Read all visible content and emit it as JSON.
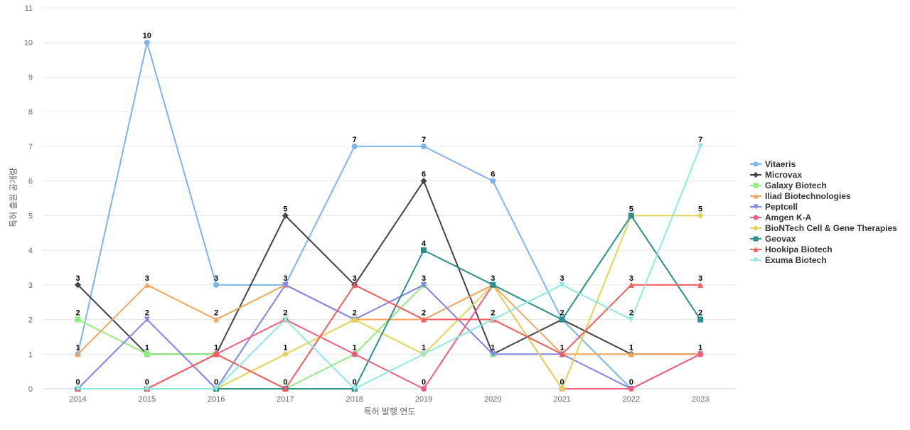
{
  "chart_data": {
    "type": "line",
    "title": "",
    "xlabel": "특허 발행 연도",
    "ylabel": "특허 출원 공개량",
    "x": [
      "2014",
      "2015",
      "2016",
      "2017",
      "2018",
      "2019",
      "2020",
      "2021",
      "2022",
      "2023"
    ],
    "ylim": [
      0,
      11
    ],
    "yticks": [
      0,
      1,
      2,
      3,
      4,
      5,
      6,
      7,
      8,
      9,
      10,
      11
    ],
    "grid": true,
    "legend_position": "right",
    "series": [
      {
        "name": "Vitaeris",
        "color": "#7cb5ec",
        "marker": "circle",
        "values": [
          1,
          10,
          3,
          3,
          7,
          7,
          6,
          2,
          0,
          null
        ]
      },
      {
        "name": "Microvax",
        "color": "#434348",
        "marker": "diamond",
        "values": [
          3,
          1,
          1,
          5,
          3,
          6,
          1,
          2,
          1,
          1
        ]
      },
      {
        "name": "Galaxy Biotech",
        "color": "#90ed7d",
        "marker": "square",
        "values": [
          2,
          1,
          1,
          0,
          1,
          3,
          1,
          null,
          null,
          null
        ]
      },
      {
        "name": "Iliad Biotechnologies",
        "color": "#f7a35c",
        "marker": "triangle",
        "values": [
          1,
          3,
          2,
          3,
          2,
          2,
          3,
          1,
          1,
          1
        ]
      },
      {
        "name": "Peptcell",
        "color": "#8085e9",
        "marker": "triangle-down",
        "values": [
          0,
          2,
          0,
          3,
          2,
          3,
          1,
          1,
          0,
          1
        ]
      },
      {
        "name": "Amgen K-A",
        "color": "#f15c80",
        "marker": "circle",
        "values": [
          0,
          0,
          1,
          2,
          1,
          0,
          3,
          0,
          0,
          1
        ]
      },
      {
        "name": "BioNTech Cell & Gene Therapies",
        "color": "#e4d354",
        "marker": "diamond",
        "values": [
          0,
          0,
          0,
          1,
          2,
          1,
          3,
          0,
          5,
          5
        ]
      },
      {
        "name": "Geovax",
        "color": "#2b908f",
        "marker": "square",
        "values": [
          0,
          0,
          0,
          0,
          0,
          4,
          3,
          2,
          5,
          2
        ]
      },
      {
        "name": "Hookipa Biotech",
        "color": "#f45b5b",
        "marker": "triangle",
        "values": [
          0,
          0,
          1,
          0,
          3,
          2,
          2,
          1,
          3,
          3
        ]
      },
      {
        "name": "Exuma Biotech",
        "color": "#91e8e1",
        "marker": "triangle-down",
        "values": [
          0,
          0,
          0,
          2,
          0,
          1,
          2,
          3,
          2,
          7
        ]
      }
    ],
    "data_labels": [
      {
        "x": "2014",
        "y": 3,
        "text": "3"
      },
      {
        "x": "2014",
        "y": 2,
        "text": "2"
      },
      {
        "x": "2014",
        "y": 1,
        "text": "1"
      },
      {
        "x": "2014",
        "y": 0,
        "text": "0"
      },
      {
        "x": "2015",
        "y": 10,
        "text": "10"
      },
      {
        "x": "2015",
        "y": 3,
        "text": "3"
      },
      {
        "x": "2015",
        "y": 2,
        "text": "2"
      },
      {
        "x": "2015",
        "y": 1,
        "text": "1"
      },
      {
        "x": "2015",
        "y": 0,
        "text": "0"
      },
      {
        "x": "2016",
        "y": 3,
        "text": "3"
      },
      {
        "x": "2016",
        "y": 2,
        "text": "2"
      },
      {
        "x": "2016",
        "y": 1,
        "text": "1"
      },
      {
        "x": "2016",
        "y": 0,
        "text": "0"
      },
      {
        "x": "2017",
        "y": 5,
        "text": "5"
      },
      {
        "x": "2017",
        "y": 3,
        "text": "3"
      },
      {
        "x": "2017",
        "y": 2,
        "text": "2"
      },
      {
        "x": "2017",
        "y": 1,
        "text": "1"
      },
      {
        "x": "2017",
        "y": 0,
        "text": "0"
      },
      {
        "x": "2018",
        "y": 7,
        "text": "7"
      },
      {
        "x": "2018",
        "y": 3,
        "text": "3"
      },
      {
        "x": "2018",
        "y": 2,
        "text": "2"
      },
      {
        "x": "2018",
        "y": 1,
        "text": "1"
      },
      {
        "x": "2018",
        "y": 0,
        "text": "0"
      },
      {
        "x": "2019",
        "y": 7,
        "text": "7"
      },
      {
        "x": "2019",
        "y": 6,
        "text": "6"
      },
      {
        "x": "2019",
        "y": 4,
        "text": "4"
      },
      {
        "x": "2019",
        "y": 3,
        "text": "3"
      },
      {
        "x": "2019",
        "y": 2,
        "text": "2"
      },
      {
        "x": "2019",
        "y": 1,
        "text": "1"
      },
      {
        "x": "2019",
        "y": 0,
        "text": "0"
      },
      {
        "x": "2020",
        "y": 6,
        "text": "6"
      },
      {
        "x": "2020",
        "y": 3,
        "text": "3"
      },
      {
        "x": "2020",
        "y": 2,
        "text": "2"
      },
      {
        "x": "2020",
        "y": 1,
        "text": "1"
      },
      {
        "x": "2021",
        "y": 3,
        "text": "3"
      },
      {
        "x": "2021",
        "y": 2,
        "text": "2"
      },
      {
        "x": "2021",
        "y": 1,
        "text": "1"
      },
      {
        "x": "2021",
        "y": 0,
        "text": "0"
      },
      {
        "x": "2022",
        "y": 5,
        "text": "5"
      },
      {
        "x": "2022",
        "y": 3,
        "text": "3"
      },
      {
        "x": "2022",
        "y": 2,
        "text": "2"
      },
      {
        "x": "2022",
        "y": 1,
        "text": "1"
      },
      {
        "x": "2022",
        "y": 0,
        "text": "0"
      },
      {
        "x": "2023",
        "y": 7,
        "text": "7"
      },
      {
        "x": "2023",
        "y": 5,
        "text": "5"
      },
      {
        "x": "2023",
        "y": 3,
        "text": "3"
      },
      {
        "x": "2023",
        "y": 2,
        "text": "2"
      },
      {
        "x": "2023",
        "y": 1,
        "text": "1"
      }
    ]
  }
}
